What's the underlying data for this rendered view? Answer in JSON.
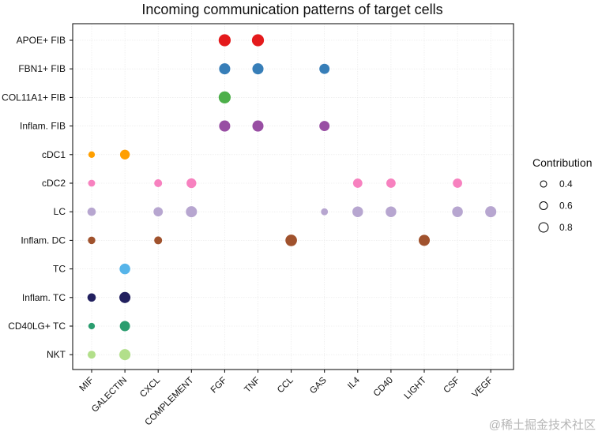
{
  "chart_data": {
    "type": "scatter",
    "title": "Incoming communication patterns of target cells",
    "xlabel": "",
    "ylabel": "",
    "categories_x": [
      "MIF",
      "GALECTIN",
      "CXCL",
      "COMPLEMENT",
      "FGF",
      "TNF",
      "CCL",
      "GAS",
      "IL4",
      "CD40",
      "LIGHT",
      "CSF",
      "VEGF"
    ],
    "categories_y": [
      "APOE+ FIB",
      "FBN1+ FIB",
      "COL11A1+ FIB",
      "Inflam. FIB",
      "cDC1",
      "cDC2",
      "LC",
      "Inflam. DC",
      "TC",
      "Inflam. TC",
      "CD40LG+ TC",
      "NKT"
    ],
    "row_colors": {
      "APOE+ FIB": "#e41a1c",
      "FBN1+ FIB": "#377eb8",
      "COL11A1+ FIB": "#4daf4a",
      "Inflam. FIB": "#984ea3",
      "cDC1": "#ff9f00",
      "cDC2": "#f781bf",
      "LC": "#b7a6d0",
      "Inflam. DC": "#a0522d",
      "TC": "#56b4e9",
      "Inflam. TC": "#22205f",
      "CD40LG+ TC": "#2a9d6f",
      "NKT": "#b2df8a"
    },
    "points": [
      {
        "y": "APOE+ FIB",
        "x": "FGF",
        "contribution": 0.9
      },
      {
        "y": "APOE+ FIB",
        "x": "TNF",
        "contribution": 0.9
      },
      {
        "y": "FBN1+ FIB",
        "x": "FGF",
        "contribution": 0.8
      },
      {
        "y": "FBN1+ FIB",
        "x": "TNF",
        "contribution": 0.8
      },
      {
        "y": "FBN1+ FIB",
        "x": "GAS",
        "contribution": 0.7
      },
      {
        "y": "COL11A1+ FIB",
        "x": "FGF",
        "contribution": 0.9
      },
      {
        "y": "Inflam. FIB",
        "x": "FGF",
        "contribution": 0.8
      },
      {
        "y": "Inflam. FIB",
        "x": "TNF",
        "contribution": 0.8
      },
      {
        "y": "Inflam. FIB",
        "x": "GAS",
        "contribution": 0.7
      },
      {
        "y": "cDC1",
        "x": "MIF",
        "contribution": 0.3
      },
      {
        "y": "cDC1",
        "x": "GALECTIN",
        "contribution": 0.65
      },
      {
        "y": "cDC2",
        "x": "MIF",
        "contribution": 0.35
      },
      {
        "y": "cDC2",
        "x": "CXCL",
        "contribution": 0.45
      },
      {
        "y": "cDC2",
        "x": "COMPLEMENT",
        "contribution": 0.65
      },
      {
        "y": "cDC2",
        "x": "IL4",
        "contribution": 0.6
      },
      {
        "y": "cDC2",
        "x": "CD40",
        "contribution": 0.6
      },
      {
        "y": "cDC2",
        "x": "CSF",
        "contribution": 0.6
      },
      {
        "y": "LC",
        "x": "MIF",
        "contribution": 0.5
      },
      {
        "y": "LC",
        "x": "CXCL",
        "contribution": 0.6
      },
      {
        "y": "LC",
        "x": "COMPLEMENT",
        "contribution": 0.8
      },
      {
        "y": "LC",
        "x": "GAS",
        "contribution": 0.35
      },
      {
        "y": "LC",
        "x": "IL4",
        "contribution": 0.75
      },
      {
        "y": "LC",
        "x": "CD40",
        "contribution": 0.75
      },
      {
        "y": "LC",
        "x": "CSF",
        "contribution": 0.75
      },
      {
        "y": "LC",
        "x": "VEGF",
        "contribution": 0.8
      },
      {
        "y": "Inflam. DC",
        "x": "MIF",
        "contribution": 0.4
      },
      {
        "y": "Inflam. DC",
        "x": "CXCL",
        "contribution": 0.45
      },
      {
        "y": "Inflam. DC",
        "x": "CCL",
        "contribution": 0.85
      },
      {
        "y": "Inflam. DC",
        "x": "LIGHT",
        "contribution": 0.8
      },
      {
        "y": "TC",
        "x": "GALECTIN",
        "contribution": 0.75
      },
      {
        "y": "Inflam. TC",
        "x": "MIF",
        "contribution": 0.5
      },
      {
        "y": "Inflam. TC",
        "x": "GALECTIN",
        "contribution": 0.8
      },
      {
        "y": "CD40LG+ TC",
        "x": "MIF",
        "contribution": 0.3
      },
      {
        "y": "CD40LG+ TC",
        "x": "GALECTIN",
        "contribution": 0.7
      },
      {
        "y": "NKT",
        "x": "MIF",
        "contribution": 0.45
      },
      {
        "y": "NKT",
        "x": "GALECTIN",
        "contribution": 0.8
      }
    ],
    "size_legend": {
      "title": "Contribution",
      "values": [
        0.4,
        0.6,
        0.8
      ],
      "labels": [
        "0.4",
        "0.6",
        "0.8"
      ],
      "placement": "right"
    },
    "grid": true
  },
  "watermark": "@稀土掘金技术社区"
}
